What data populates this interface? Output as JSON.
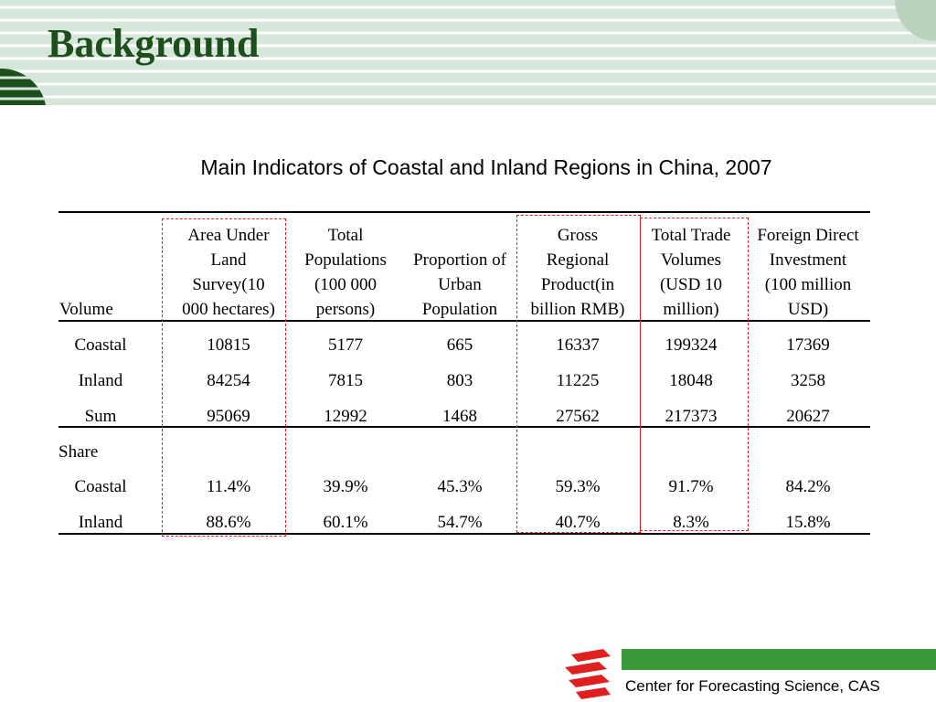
{
  "header": {
    "title": "Background"
  },
  "table": {
    "caption": "Main Indicators of Coastal and Inland Regions in China, 2007",
    "columns": [
      "Volume",
      "Area Under\nLand\nSurvey(10\n000 hectares)",
      "Total\nPopulations\n(100 000\npersons)",
      "Proportion of\nUrban\nPopulation",
      "Gross\nRegional\nProduct(in\nbillion RMB)",
      "Total Trade\nVolumes\n(USD 10\nmillion)",
      "Foreign Direct\nInvestment\n(100 million\nUSD)"
    ],
    "rows": [
      [
        "Coastal",
        "10815",
        "5177",
        "665",
        "16337",
        "199324",
        "17369"
      ],
      [
        "Inland",
        "84254",
        "7815",
        "803",
        "11225",
        "18048",
        "3258"
      ],
      [
        "Sum",
        "95069",
        "12992",
        "1468",
        "27562",
        "217373",
        "20627"
      ]
    ],
    "section": "Share",
    "share_rows": [
      [
        "Coastal",
        "11.4%",
        "39.9%",
        "45.3%",
        "59.3%",
        "91.7%",
        "84.2%"
      ],
      [
        "Inland",
        "88.6%",
        "60.1%",
        "54.7%",
        "40.7%",
        "8.3%",
        "15.8%"
      ]
    ]
  },
  "footer": {
    "org": "Center for Forecasting Science, CAS"
  }
}
